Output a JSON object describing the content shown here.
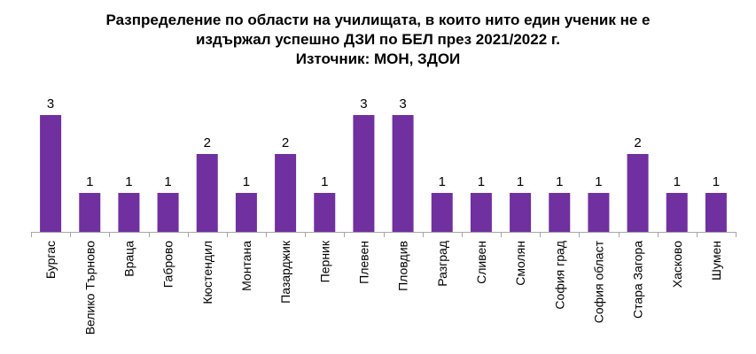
{
  "chart_data": {
    "type": "bar",
    "title_lines": [
      "Разпределение по области на училищата, в които нито един ученик не е",
      "издържал успешно ДЗИ по БЕЛ през 2021/2022 г.",
      "Източник: МОН, ЗДОИ"
    ],
    "categories": [
      "Бургас",
      "Велико Търново",
      "Враца",
      "Габрово",
      "Кюстендил",
      "Монтана",
      "Пазарджик",
      "Перник",
      "Плевен",
      "Пловдив",
      "Разград",
      "Сливен",
      "Смолян",
      "София град",
      "София област",
      "Стара Загора",
      "Хасково",
      "Шумен"
    ],
    "values": [
      3,
      1,
      1,
      1,
      2,
      1,
      2,
      1,
      3,
      3,
      1,
      1,
      1,
      1,
      1,
      2,
      1,
      1
    ],
    "ylim": [
      0,
      3
    ],
    "grid": false,
    "legend": "none",
    "bar_color": "#7030A0",
    "axis_color": "#A6A6A6"
  }
}
